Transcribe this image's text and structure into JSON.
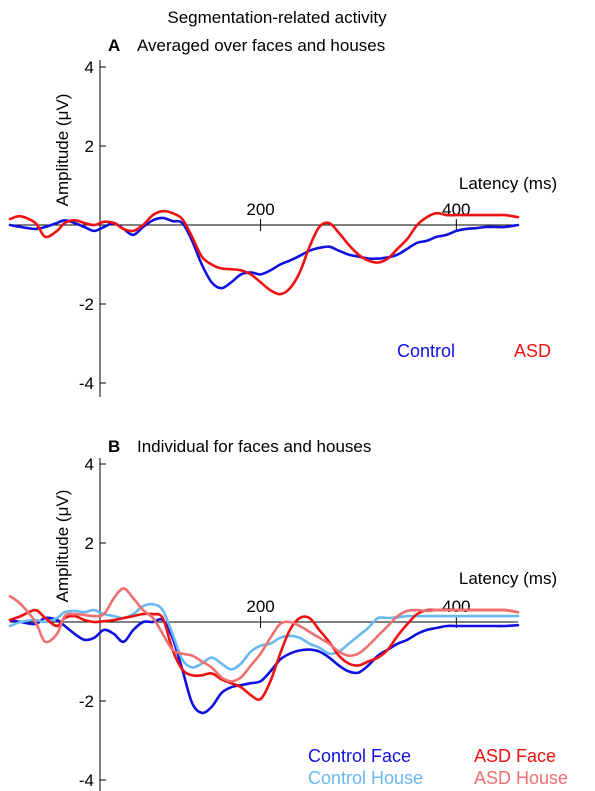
{
  "figure_title": "Segmentation-related activity",
  "panels": [
    {
      "letter": "A",
      "subtitle": "Averaged over faces and houses"
    },
    {
      "letter": "B",
      "subtitle": "Individual for faces and houses"
    }
  ],
  "colors": {
    "control": "#1010e0",
    "asd": "#ee1111",
    "control_face": "#1010e0",
    "control_house": "#6ab8f0",
    "asd_face": "#ee1111",
    "asd_house": "#ee7070"
  },
  "chart_data": [
    {
      "type": "line",
      "panel": "A",
      "xlabel": "Latency (ms)",
      "ylabel": "Amplitude (μV)",
      "xlim": [
        -56,
        463
      ],
      "ylim": [
        -4,
        4
      ],
      "xticks": [
        200,
        400
      ],
      "yticks": [
        4,
        2,
        -2,
        -4
      ],
      "grid": false,
      "legend_position": "bottom-right",
      "series": [
        {
          "name": "Control",
          "color_key": "control",
          "x": [
            -56,
            -45,
            -30,
            -20,
            -8,
            0,
            10,
            20,
            30,
            40,
            50,
            60,
            70,
            80,
            90,
            100,
            110,
            120,
            130,
            140,
            150,
            160,
            170,
            180,
            190,
            200,
            210,
            220,
            230,
            240,
            250,
            260,
            270,
            280,
            290,
            300,
            310,
            320,
            330,
            340,
            350,
            360,
            370,
            380,
            390,
            400,
            410,
            420,
            430,
            440,
            450,
            463
          ],
          "y": [
            0.0,
            -0.05,
            -0.1,
            -0.05,
            0.05,
            0.12,
            0.05,
            -0.05,
            -0.15,
            -0.05,
            0.05,
            -0.1,
            -0.25,
            -0.05,
            0.12,
            0.18,
            0.1,
            0.05,
            -0.4,
            -1.0,
            -1.45,
            -1.6,
            -1.45,
            -1.25,
            -1.2,
            -1.25,
            -1.15,
            -1.0,
            -0.9,
            -0.78,
            -0.65,
            -0.58,
            -0.55,
            -0.65,
            -0.75,
            -0.8,
            -0.85,
            -0.85,
            -0.82,
            -0.75,
            -0.6,
            -0.45,
            -0.4,
            -0.3,
            -0.25,
            -0.15,
            -0.1,
            -0.08,
            -0.05,
            -0.05,
            -0.05,
            0.0
          ]
        },
        {
          "name": "ASD",
          "color_key": "asd",
          "x": [
            -56,
            -45,
            -30,
            -20,
            -8,
            0,
            10,
            20,
            30,
            40,
            50,
            60,
            70,
            80,
            90,
            100,
            110,
            120,
            130,
            140,
            150,
            160,
            170,
            180,
            190,
            200,
            210,
            220,
            230,
            240,
            250,
            260,
            270,
            280,
            290,
            300,
            310,
            320,
            330,
            340,
            350,
            360,
            370,
            380,
            390,
            400,
            410,
            420,
            430,
            440,
            450,
            463
          ],
          "y": [
            0.15,
            0.22,
            0.05,
            -0.3,
            -0.15,
            0.05,
            0.12,
            0.05,
            0.0,
            0.08,
            0.05,
            -0.1,
            -0.15,
            0.0,
            0.25,
            0.35,
            0.3,
            0.15,
            -0.3,
            -0.8,
            -1.0,
            -1.1,
            -1.12,
            -1.15,
            -1.25,
            -1.45,
            -1.65,
            -1.75,
            -1.6,
            -1.2,
            -0.55,
            -0.05,
            0.05,
            -0.2,
            -0.5,
            -0.75,
            -0.9,
            -0.95,
            -0.85,
            -0.6,
            -0.35,
            0.0,
            0.2,
            0.3,
            0.25,
            0.25,
            0.25,
            0.25,
            0.25,
            0.25,
            0.25,
            0.2
          ]
        }
      ]
    },
    {
      "type": "line",
      "panel": "B",
      "xlabel": "Latency (ms)",
      "ylabel": "Amplitude (μV)",
      "xlim": [
        -56,
        463
      ],
      "ylim": [
        -4,
        4
      ],
      "xticks": [
        200,
        400
      ],
      "yticks": [
        4,
        2,
        -2,
        -4
      ],
      "grid": false,
      "legend_position": "bottom-right",
      "series": [
        {
          "name": "Control Face",
          "color_key": "control_face",
          "x": [
            -56,
            -45,
            -30,
            -20,
            -8,
            0,
            10,
            20,
            30,
            40,
            50,
            60,
            70,
            80,
            90,
            100,
            110,
            120,
            130,
            140,
            150,
            160,
            170,
            180,
            190,
            200,
            210,
            220,
            230,
            240,
            250,
            260,
            270,
            280,
            290,
            300,
            310,
            320,
            330,
            340,
            350,
            360,
            370,
            380,
            390,
            400,
            410,
            420,
            430,
            440,
            450,
            463
          ],
          "y": [
            0.05,
            0.0,
            -0.05,
            0.1,
            0.05,
            -0.1,
            -0.3,
            -0.45,
            -0.4,
            -0.2,
            -0.3,
            -0.5,
            -0.2,
            0.0,
            0.0,
            0.05,
            -0.4,
            -1.2,
            -2.05,
            -2.3,
            -2.15,
            -1.8,
            -1.65,
            -1.6,
            -1.55,
            -1.5,
            -1.25,
            -0.95,
            -0.8,
            -0.72,
            -0.7,
            -0.75,
            -0.9,
            -1.1,
            -1.25,
            -1.28,
            -1.1,
            -0.85,
            -0.7,
            -0.55,
            -0.45,
            -0.3,
            -0.2,
            -0.15,
            -0.1,
            -0.1,
            -0.1,
            -0.1,
            -0.1,
            -0.1,
            -0.1,
            -0.08
          ]
        },
        {
          "name": "Control House",
          "color_key": "control_house",
          "x": [
            -56,
            -45,
            -30,
            -20,
            -8,
            0,
            10,
            20,
            30,
            40,
            50,
            60,
            70,
            80,
            90,
            100,
            110,
            120,
            130,
            140,
            150,
            160,
            170,
            180,
            190,
            200,
            210,
            220,
            230,
            240,
            250,
            260,
            270,
            280,
            290,
            300,
            310,
            320,
            330,
            340,
            350,
            360,
            370,
            380,
            390,
            400,
            410,
            420,
            430,
            440,
            450,
            463
          ],
          "y": [
            -0.1,
            0.0,
            0.05,
            0.0,
            0.1,
            0.25,
            0.28,
            0.25,
            0.3,
            0.2,
            0.15,
            0.1,
            0.2,
            0.4,
            0.45,
            0.3,
            -0.3,
            -0.95,
            -1.15,
            -1.05,
            -0.9,
            -1.05,
            -1.2,
            -1.05,
            -0.75,
            -0.6,
            -0.55,
            -0.4,
            -0.35,
            -0.4,
            -0.55,
            -0.65,
            -0.8,
            -0.75,
            -0.55,
            -0.35,
            -0.15,
            0.1,
            0.1,
            0.12,
            0.15,
            0.15,
            0.15,
            0.15,
            0.15,
            0.15,
            0.15,
            0.15,
            0.15,
            0.15,
            0.15,
            0.15
          ]
        },
        {
          "name": "ASD Face",
          "color_key": "asd_face",
          "x": [
            -56,
            -45,
            -30,
            -20,
            -8,
            0,
            10,
            20,
            30,
            40,
            50,
            60,
            70,
            80,
            90,
            100,
            110,
            120,
            130,
            140,
            150,
            160,
            170,
            180,
            190,
            200,
            210,
            220,
            230,
            240,
            250,
            260,
            270,
            280,
            290,
            300,
            310,
            320,
            330,
            340,
            350,
            360,
            370,
            380,
            390,
            400,
            410,
            420,
            430,
            440,
            450,
            463
          ],
          "y": [
            0.05,
            0.15,
            0.3,
            0.1,
            -0.1,
            0.1,
            0.15,
            0.05,
            0.0,
            0.02,
            0.05,
            0.1,
            0.15,
            0.2,
            0.2,
            0.1,
            -0.7,
            -1.2,
            -1.35,
            -1.35,
            -1.3,
            -1.45,
            -1.55,
            -1.65,
            -1.85,
            -1.95,
            -1.5,
            -0.8,
            -0.2,
            0.1,
            0.1,
            -0.2,
            -0.5,
            -0.85,
            -1.05,
            -1.1,
            -1.0,
            -0.9,
            -0.7,
            -0.35,
            -0.05,
            0.2,
            0.3,
            0.3,
            0.3,
            0.3,
            0.3,
            0.3,
            0.3,
            0.3,
            0.3,
            0.25
          ]
        },
        {
          "name": "ASD House",
          "color_key": "asd_house",
          "x": [
            -56,
            -45,
            -30,
            -20,
            -8,
            0,
            10,
            20,
            30,
            40,
            50,
            60,
            70,
            80,
            90,
            100,
            110,
            120,
            130,
            140,
            150,
            160,
            170,
            180,
            190,
            200,
            210,
            220,
            230,
            240,
            250,
            260,
            270,
            280,
            290,
            300,
            310,
            320,
            330,
            340,
            350,
            360,
            370,
            380,
            390,
            400,
            410,
            420,
            430,
            440,
            450,
            463
          ],
          "y": [
            0.65,
            0.45,
            0.0,
            -0.5,
            -0.3,
            0.15,
            0.2,
            0.18,
            0.15,
            0.2,
            0.6,
            0.85,
            0.6,
            0.3,
            0.1,
            -0.3,
            -0.7,
            -0.8,
            -0.85,
            -1.0,
            -1.15,
            -1.4,
            -1.5,
            -1.4,
            -1.1,
            -0.8,
            -0.4,
            -0.05,
            0.0,
            -0.1,
            -0.25,
            -0.4,
            -0.55,
            -0.75,
            -0.85,
            -0.8,
            -0.6,
            -0.35,
            -0.1,
            0.15,
            0.28,
            0.3,
            0.28,
            0.3,
            0.3,
            0.3,
            0.3,
            0.3,
            0.3,
            0.3,
            0.3,
            0.25
          ]
        }
      ]
    }
  ]
}
